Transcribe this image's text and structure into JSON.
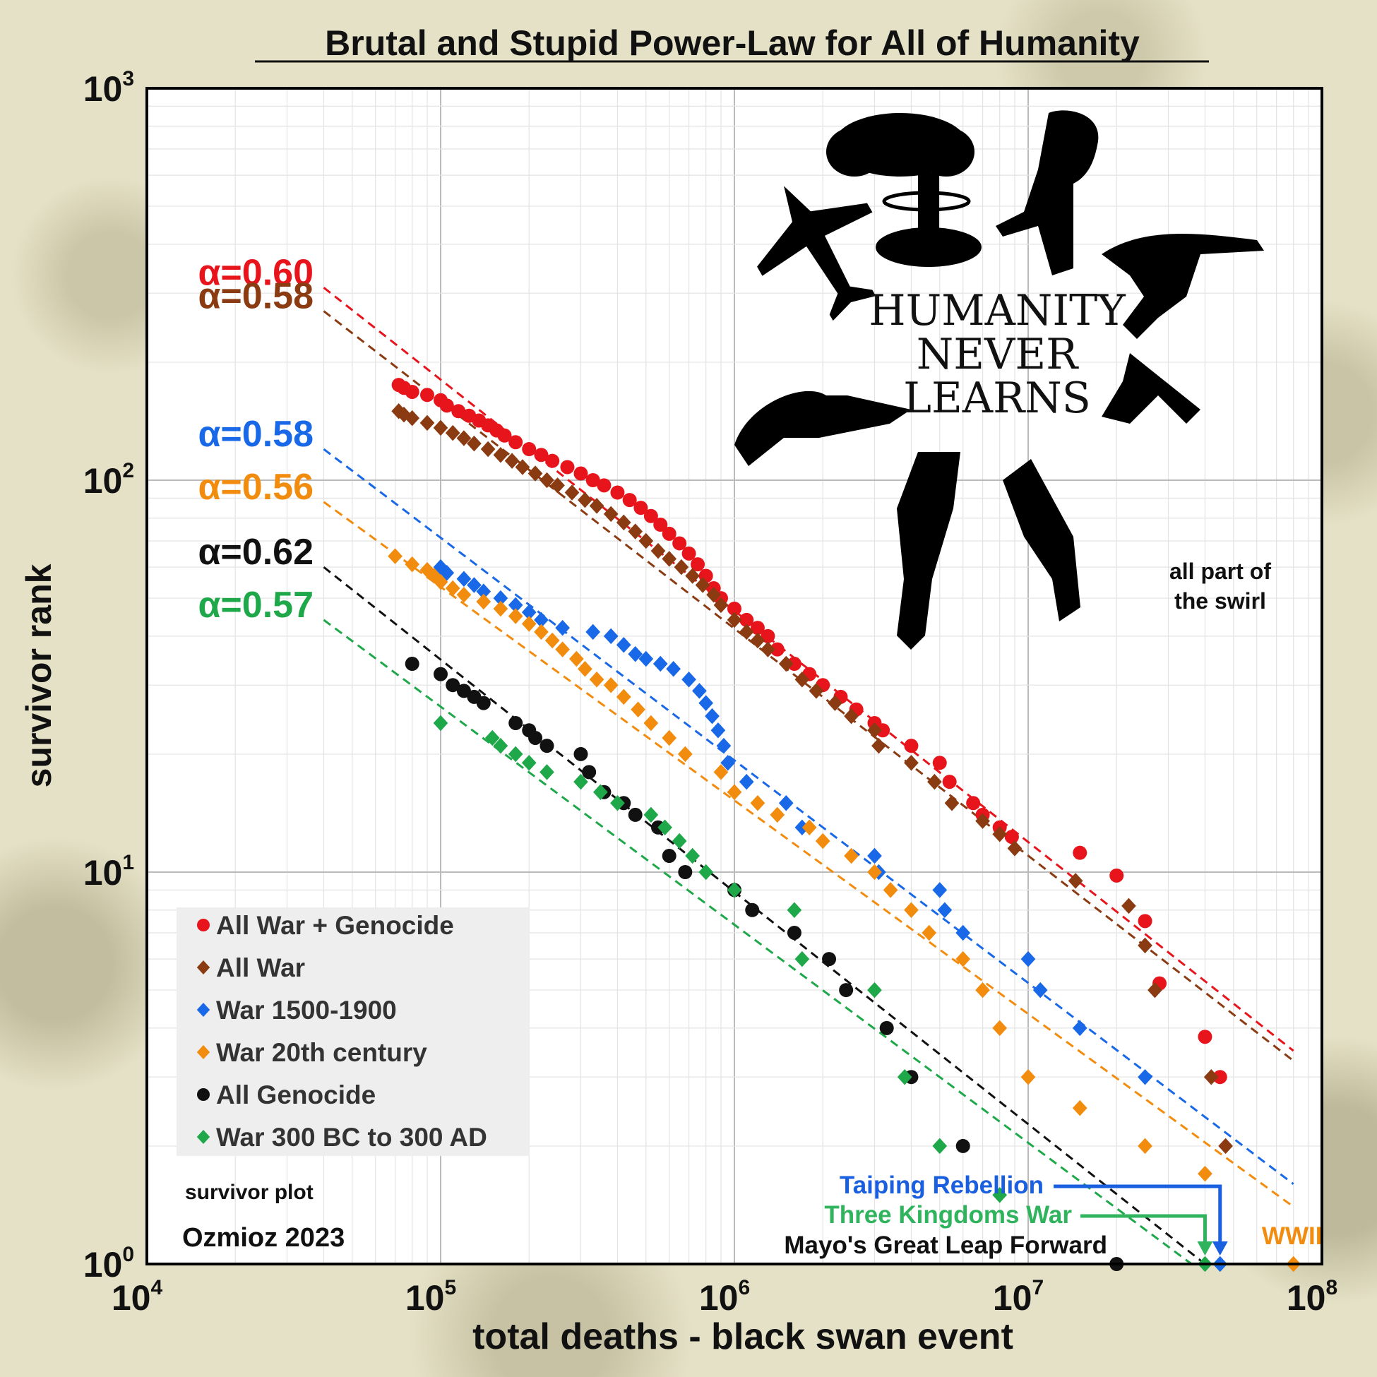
{
  "chart_data": {
    "type": "scatter",
    "title": "Brutal and Stupid Power-Law for All of Humanity",
    "xlabel": "total deaths - black swan event",
    "ylabel": "survivor rank",
    "xscale": "log",
    "yscale": "log",
    "xlim": [
      10000,
      100000000
    ],
    "ylim": [
      1,
      1000
    ],
    "x_ticks": [
      {
        "base": "10",
        "exp": "4"
      },
      {
        "base": "10",
        "exp": "5"
      },
      {
        "base": "10",
        "exp": "6"
      },
      {
        "base": "10",
        "exp": "7"
      },
      {
        "base": "10",
        "exp": "8"
      }
    ],
    "y_ticks": [
      {
        "base": "10",
        "exp": "0"
      },
      {
        "base": "10",
        "exp": "1"
      },
      {
        "base": "10",
        "exp": "2"
      },
      {
        "base": "10",
        "exp": "3"
      }
    ],
    "grid": true,
    "legend_position": "bottom-left",
    "series": [
      {
        "name": "All War + Genocide",
        "marker": "circle",
        "color": "#e8141c",
        "fit_color": "#e8141c",
        "alpha_label": "α=0.60",
        "fit": {
          "x0": 40000,
          "y0": 310,
          "x1": 80000000,
          "y1": 3.5
        },
        "points": [
          [
            72000,
            175
          ],
          [
            75000,
            172
          ],
          [
            80000,
            168
          ],
          [
            90000,
            165
          ],
          [
            100000,
            160
          ],
          [
            105000,
            155
          ],
          [
            115000,
            150
          ],
          [
            125000,
            146
          ],
          [
            135000,
            142
          ],
          [
            145000,
            138
          ],
          [
            155000,
            134
          ],
          [
            165000,
            130
          ],
          [
            180000,
            125
          ],
          [
            200000,
            120
          ],
          [
            220000,
            116
          ],
          [
            240000,
            112
          ],
          [
            270000,
            108
          ],
          [
            300000,
            104
          ],
          [
            330000,
            100
          ],
          [
            360000,
            97
          ],
          [
            400000,
            93
          ],
          [
            440000,
            89
          ],
          [
            480000,
            85
          ],
          [
            520000,
            81
          ],
          [
            560000,
            77
          ],
          [
            600000,
            73
          ],
          [
            650000,
            69
          ],
          [
            700000,
            65
          ],
          [
            750000,
            61
          ],
          [
            800000,
            57
          ],
          [
            850000,
            53
          ],
          [
            900000,
            50
          ],
          [
            1000000,
            47
          ],
          [
            1100000,
            44
          ],
          [
            1200000,
            42
          ],
          [
            1300000,
            40
          ],
          [
            1400000,
            37
          ],
          [
            1600000,
            34
          ],
          [
            1800000,
            32
          ],
          [
            2000000,
            30
          ],
          [
            2300000,
            28
          ],
          [
            2600000,
            26
          ],
          [
            3000000,
            24
          ],
          [
            3200000,
            23
          ],
          [
            4000000,
            21
          ],
          [
            5000000,
            19
          ],
          [
            5400000,
            17
          ],
          [
            6500000,
            15
          ],
          [
            7000000,
            14
          ],
          [
            8000000,
            13
          ],
          [
            8800000,
            12.3
          ],
          [
            15000000,
            11.2
          ],
          [
            20000000,
            9.8
          ],
          [
            25000000,
            7.5
          ],
          [
            28000000,
            5.2
          ],
          [
            40000000,
            3.8
          ],
          [
            45000000,
            3.0
          ]
        ]
      },
      {
        "name": "All War",
        "marker": "diamond",
        "color": "#8b3b12",
        "fit_color": "#8b3b12",
        "alpha_label": "α=0.58",
        "fit": {
          "x0": 40000,
          "y0": 270,
          "x1": 80000000,
          "y1": 3.3
        },
        "points": [
          [
            72000,
            150
          ],
          [
            75000,
            147
          ],
          [
            80000,
            144
          ],
          [
            90000,
            140
          ],
          [
            100000,
            136
          ],
          [
            110000,
            132
          ],
          [
            120000,
            128
          ],
          [
            130000,
            124
          ],
          [
            145000,
            120
          ],
          [
            160000,
            116
          ],
          [
            175000,
            112
          ],
          [
            190000,
            108
          ],
          [
            210000,
            104
          ],
          [
            230000,
            100
          ],
          [
            250000,
            97
          ],
          [
            280000,
            93
          ],
          [
            310000,
            89
          ],
          [
            340000,
            86
          ],
          [
            380000,
            82
          ],
          [
            420000,
            78
          ],
          [
            460000,
            74
          ],
          [
            500000,
            70
          ],
          [
            550000,
            66
          ],
          [
            600000,
            63
          ],
          [
            660000,
            60
          ],
          [
            720000,
            57
          ],
          [
            780000,
            54
          ],
          [
            850000,
            51
          ],
          [
            900000,
            48
          ],
          [
            1000000,
            44
          ],
          [
            1100000,
            41
          ],
          [
            1200000,
            39
          ],
          [
            1300000,
            37
          ],
          [
            1500000,
            34
          ],
          [
            1700000,
            31
          ],
          [
            1900000,
            29
          ],
          [
            2200000,
            27
          ],
          [
            2500000,
            25
          ],
          [
            3000000,
            23
          ],
          [
            3100000,
            21
          ],
          [
            4000000,
            19
          ],
          [
            4800000,
            17
          ],
          [
            5500000,
            15
          ],
          [
            7000000,
            13.5
          ],
          [
            8000000,
            12.5
          ],
          [
            9000000,
            11.5
          ],
          [
            14500000,
            9.5
          ],
          [
            22000000,
            8.2
          ],
          [
            25000000,
            6.5
          ],
          [
            27000000,
            5.0
          ],
          [
            42000000,
            3.0
          ],
          [
            47000000,
            2.0
          ]
        ]
      },
      {
        "name": "War 1500-1900",
        "marker": "diamond",
        "color": "#1868e8",
        "fit_color": "#1868e8",
        "alpha_label": "α=0.58",
        "fit": {
          "x0": 40000,
          "y0": 120,
          "x1": 80000000,
          "y1": 1.6
        },
        "points": [
          [
            100000,
            60
          ],
          [
            105000,
            58
          ],
          [
            120000,
            56
          ],
          [
            130000,
            54
          ],
          [
            140000,
            52
          ],
          [
            160000,
            50
          ],
          [
            180000,
            48
          ],
          [
            200000,
            46
          ],
          [
            220000,
            44
          ],
          [
            260000,
            42
          ],
          [
            330000,
            41
          ],
          [
            380000,
            40
          ],
          [
            420000,
            38
          ],
          [
            460000,
            36
          ],
          [
            500000,
            35
          ],
          [
            560000,
            34
          ],
          [
            620000,
            33
          ],
          [
            700000,
            31
          ],
          [
            760000,
            29
          ],
          [
            800000,
            27
          ],
          [
            840000,
            25
          ],
          [
            880000,
            23
          ],
          [
            920000,
            21
          ],
          [
            950000,
            19
          ],
          [
            1100000,
            17
          ],
          [
            1500000,
            15
          ],
          [
            1700000,
            13
          ],
          [
            3000000,
            11
          ],
          [
            3100000,
            10
          ],
          [
            5000000,
            9
          ],
          [
            5200000,
            8
          ],
          [
            6000000,
            7
          ],
          [
            10000000,
            6
          ],
          [
            11000000,
            5
          ],
          [
            15000000,
            4
          ],
          [
            25000000,
            3
          ],
          [
            45000000,
            1
          ]
        ]
      },
      {
        "name": "War 20th century",
        "marker": "diamond",
        "color": "#f28c0f",
        "fit_color": "#f28c0f",
        "alpha_label": "α=0.56",
        "fit": {
          "x0": 40000,
          "y0": 88,
          "x1": 80000000,
          "y1": 1.4
        },
        "points": [
          [
            70000,
            64
          ],
          [
            80000,
            61
          ],
          [
            90000,
            59
          ],
          [
            95000,
            57
          ],
          [
            100000,
            55
          ],
          [
            110000,
            53
          ],
          [
            120000,
            51
          ],
          [
            140000,
            49
          ],
          [
            160000,
            47
          ],
          [
            180000,
            45
          ],
          [
            200000,
            43
          ],
          [
            220000,
            41
          ],
          [
            240000,
            39
          ],
          [
            260000,
            37
          ],
          [
            290000,
            35
          ],
          [
            310000,
            33
          ],
          [
            340000,
            31
          ],
          [
            380000,
            30
          ],
          [
            420000,
            28
          ],
          [
            470000,
            26
          ],
          [
            520000,
            24
          ],
          [
            600000,
            22
          ],
          [
            680000,
            20
          ],
          [
            900000,
            18
          ],
          [
            1000000,
            16
          ],
          [
            1200000,
            15
          ],
          [
            1400000,
            14
          ],
          [
            1800000,
            13
          ],
          [
            2000000,
            12
          ],
          [
            2500000,
            11
          ],
          [
            3000000,
            10
          ],
          [
            3400000,
            9
          ],
          [
            4000000,
            8
          ],
          [
            4600000,
            7
          ],
          [
            6000000,
            6
          ],
          [
            7000000,
            5
          ],
          [
            8000000,
            4
          ],
          [
            10000000,
            3
          ],
          [
            15000000,
            2.5
          ],
          [
            25000000,
            2
          ],
          [
            40000000,
            1.7
          ],
          [
            80000000,
            1
          ]
        ]
      },
      {
        "name": "All Genocide",
        "marker": "circle",
        "color": "#111111",
        "fit_color": "#111111",
        "alpha_label": "α=0.62",
        "fit": {
          "x0": 40000,
          "y0": 60,
          "x1": 40000000,
          "y1": 1.0
        },
        "points": [
          [
            80000,
            34
          ],
          [
            100000,
            32
          ],
          [
            110000,
            30
          ],
          [
            120000,
            29
          ],
          [
            130000,
            28
          ],
          [
            140000,
            27
          ],
          [
            180000,
            24
          ],
          [
            200000,
            23
          ],
          [
            210000,
            22
          ],
          [
            230000,
            21
          ],
          [
            300000,
            20
          ],
          [
            320000,
            18
          ],
          [
            360000,
            16
          ],
          [
            420000,
            15
          ],
          [
            460000,
            14
          ],
          [
            550000,
            13
          ],
          [
            600000,
            11
          ],
          [
            680000,
            10
          ],
          [
            1000000,
            9
          ],
          [
            1150000,
            8
          ],
          [
            1600000,
            7
          ],
          [
            2100000,
            6
          ],
          [
            2400000,
            5
          ],
          [
            3300000,
            4
          ],
          [
            4000000,
            3
          ],
          [
            6000000,
            2
          ],
          [
            20000000,
            1
          ]
        ]
      },
      {
        "name": "War 300 BC to 300 AD",
        "marker": "diamond",
        "color": "#1fa84a",
        "fit_color": "#1fa84a",
        "alpha_label": "α=0.57",
        "fit": {
          "x0": 40000,
          "y0": 44,
          "x1": 36000000,
          "y1": 1.0
        },
        "points": [
          [
            100000,
            24
          ],
          [
            150000,
            22
          ],
          [
            160000,
            21
          ],
          [
            180000,
            20
          ],
          [
            200000,
            19
          ],
          [
            230000,
            18
          ],
          [
            300000,
            17
          ],
          [
            350000,
            16
          ],
          [
            400000,
            15
          ],
          [
            520000,
            14
          ],
          [
            580000,
            13
          ],
          [
            650000,
            12
          ],
          [
            720000,
            11
          ],
          [
            800000,
            10
          ],
          [
            1000000,
            9
          ],
          [
            1600000,
            8
          ],
          [
            1700000,
            6
          ],
          [
            3000000,
            5
          ],
          [
            3800000,
            3
          ],
          [
            5000000,
            2
          ],
          [
            8000000,
            1.5
          ],
          [
            40000000,
            1
          ]
        ]
      }
    ],
    "annotations": {
      "humanity": [
        "HUMANITY",
        "NEVER",
        "LEARNS"
      ],
      "swirl": [
        "all part of",
        "the swirl"
      ],
      "survivor_plot": "survivor plot",
      "credit": "Ozmioz 2023",
      "events": [
        {
          "label": "Taiping Rebellion",
          "color": "#1a5fe0",
          "x": 45000000,
          "y": 1
        },
        {
          "label": "Three Kingdoms War",
          "color": "#2fb35c",
          "x": 40000000,
          "y": 1
        },
        {
          "label": "Mayo's Great Leap Forward",
          "color": "#111111",
          "x": 20000000,
          "y": 1
        },
        {
          "label": "WWII",
          "color": "#f28c0f",
          "x": 80000000,
          "y": 1
        }
      ]
    }
  }
}
